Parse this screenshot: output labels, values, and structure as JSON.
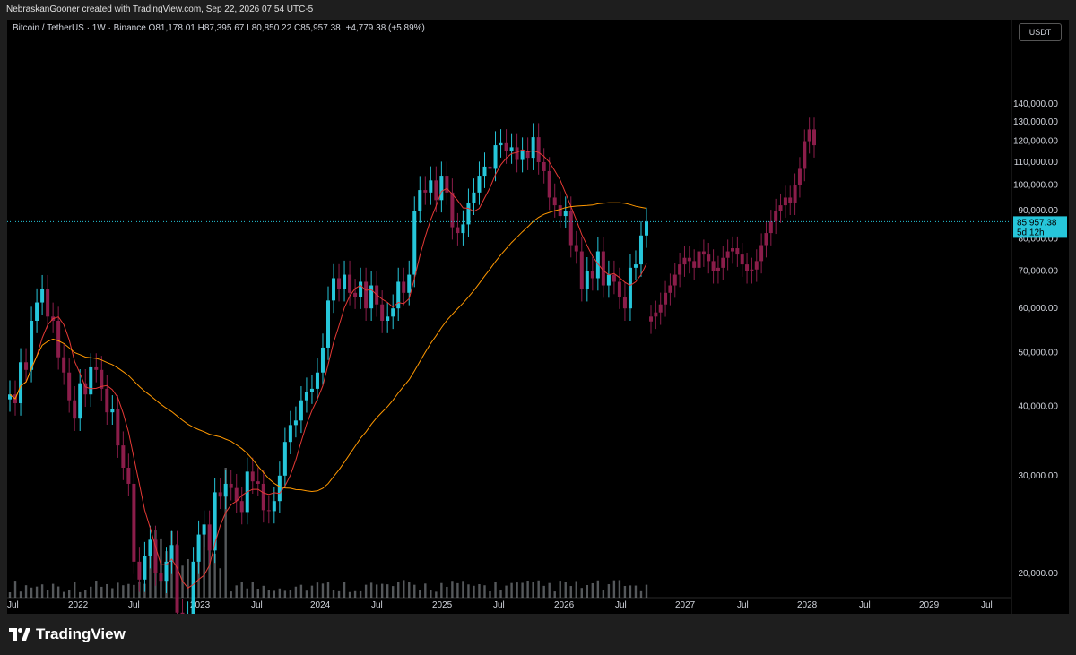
{
  "header": {
    "attribution": "NebraskanGooner created with TradingView.com, Sep 22, 2026 07:54 UTC-5"
  },
  "legend": {
    "symbol": "Bitcoin / TetherUS · 1W · Binance",
    "open_label": "O",
    "open": "81,178.01",
    "high_label": "H",
    "high": "87,395.67",
    "low_label": "L",
    "low": "80,850.22",
    "close_label": "C",
    "close": "85,957.38",
    "change": "+4,779.38 (+5.89%)"
  },
  "currency_button": "USDT",
  "price_tag": {
    "price": "85,957.38",
    "countdown": "5d 12h"
  },
  "branding": {
    "logo_text": "TradingView"
  },
  "colors": {
    "up": "#26c6da",
    "down": "#8b1d4a",
    "ma_fast": "#e53935",
    "ma_slow": "#ff9800",
    "projection": "#8b1d4a",
    "background": "#000000"
  },
  "chart_data": {
    "type": "candlestick",
    "title": "Bitcoin / TetherUS · 1W · Binance",
    "interval": "1W",
    "y_axis": {
      "side": "right",
      "scale": "log",
      "ticks": [
        "20,000.00",
        "30,000.00",
        "40,000.00",
        "50,000.00",
        "60,000.00",
        "70,000.00",
        "80,000.00",
        "90,000.00",
        "100,000.00",
        "110,000.00",
        "120,000.00",
        "130,000.00",
        "140,000.00"
      ]
    },
    "x_axis": {
      "ticks": [
        "Jul",
        "2022",
        "Jul",
        "2023",
        "Jul",
        "2024",
        "Jul",
        "2025",
        "Jul",
        "2026",
        "Jul",
        "2027",
        "Jul",
        "2028",
        "Jul",
        "2029",
        "Jul"
      ]
    },
    "last_price": 85957.38,
    "grid": false,
    "series": [
      {
        "name": "BTCUSDT",
        "kind": "candles",
        "closes": [
          42000,
          40500,
          48000,
          46500,
          57000,
          61500,
          65000,
          58000,
          57000,
          49000,
          46000,
          41000,
          38000,
          44000,
          42000,
          47000,
          46500,
          43000,
          39000,
          39500,
          34000,
          31000,
          29000,
          21000,
          19500,
          21500,
          23000,
          20000,
          19400,
          21000,
          22500,
          17000,
          16300,
          16800,
          21000,
          23500,
          24500,
          22000,
          28000,
          27500,
          29000,
          28500,
          27000,
          25800,
          30500,
          29300,
          29000,
          26000,
          25900,
          27000,
          30000,
          34500,
          37000,
          37700,
          41000,
          42500,
          43000,
          46000,
          51000,
          62000,
          68000,
          65000,
          69000,
          64000,
          63000,
          67000,
          60000,
          66000,
          61000,
          57000,
          58000,
          60000,
          67000,
          64000,
          69000,
          90000,
          98000,
          97000,
          102000,
          94000,
          104000,
          97000,
          84000,
          82000,
          85000,
          93000,
          97000,
          104000,
          108000,
          107000,
          118000,
          119000,
          115000,
          117000,
          111000,
          115000,
          112000,
          122000,
          110000,
          106000,
          95000,
          92000,
          88000,
          90000,
          78000,
          76000,
          65000,
          70000,
          68000,
          76000,
          66000,
          69000,
          67000,
          63000,
          60000,
          71000,
          72000,
          81178,
          85957
        ]
      },
      {
        "name": "Projection",
        "kind": "candles-projection",
        "closes": [
          58000,
          59000,
          61000,
          64000,
          66000,
          69000,
          72000,
          74000,
          73000,
          71000,
          76000,
          75000,
          73000,
          70000,
          71000,
          74000,
          76000,
          77000,
          75000,
          72000,
          70000,
          70500,
          73000,
          78000,
          82000,
          86000,
          90000,
          92000,
          95000,
          93000,
          100000,
          107000,
          120000,
          126000,
          118000
        ]
      },
      {
        "name": "MA fast",
        "kind": "line"
      },
      {
        "name": "MA slow",
        "kind": "line"
      },
      {
        "name": "Volume",
        "kind": "histogram"
      }
    ]
  }
}
